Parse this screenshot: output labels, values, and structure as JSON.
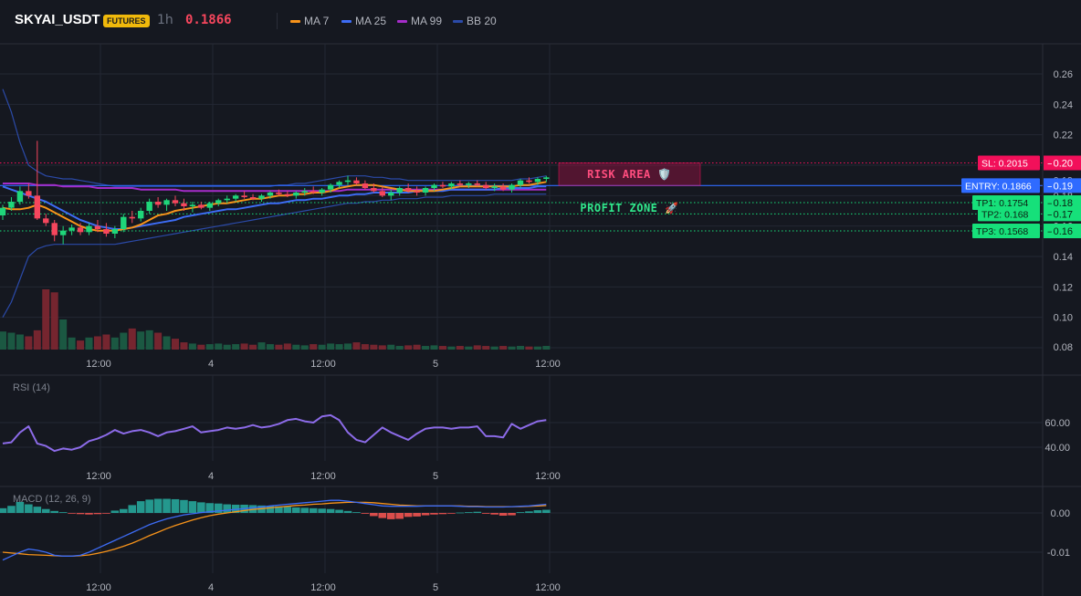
{
  "header": {
    "symbol": "SKYAI_USDT",
    "badge": "FUTURES",
    "timeframe": "1h",
    "price": "0.1866"
  },
  "legend": [
    {
      "label": "MA 7",
      "color": "#f7931a"
    },
    {
      "label": "MA 25",
      "color": "#3d6cf5"
    },
    {
      "label": "MA 99",
      "color": "#a52cc9"
    },
    {
      "label": "BB 20",
      "color": "#2b4aa8"
    }
  ],
  "colors": {
    "up": "#1fd67a",
    "down": "#f6465d",
    "background": "#151820",
    "grid": "#232733",
    "sl": "#f2105a",
    "entry": "#2f6bff",
    "tp": "#16e07a"
  },
  "chart_data": [
    {
      "type": "candlestick",
      "title": "SKYAI_USDT",
      "x_tick_labels": [
        "12:00",
        "4",
        "12:00",
        "5",
        "12:00"
      ],
      "y_tick_labels": [
        "0.26",
        "0.24",
        "0.22",
        "0.20",
        "0.19",
        "0.18",
        "0.17",
        "0.16",
        "0.14",
        "0.12",
        "0.10",
        "0.08"
      ],
      "ylim": [
        0.08,
        0.27
      ],
      "candles": [
        [
          0.167,
          0.174,
          0.164,
          0.172
        ],
        [
          0.172,
          0.179,
          0.17,
          0.176
        ],
        [
          0.176,
          0.186,
          0.174,
          0.183
        ],
        [
          0.183,
          0.188,
          0.178,
          0.18
        ],
        [
          0.18,
          0.216,
          0.164,
          0.165
        ],
        [
          0.165,
          0.168,
          0.16,
          0.162
        ],
        [
          0.162,
          0.164,
          0.15,
          0.154
        ],
        [
          0.154,
          0.16,
          0.148,
          0.157
        ],
        [
          0.157,
          0.161,
          0.154,
          0.159
        ],
        [
          0.159,
          0.162,
          0.154,
          0.156
        ],
        [
          0.156,
          0.162,
          0.154,
          0.16
        ],
        [
          0.16,
          0.164,
          0.156,
          0.158
        ],
        [
          0.158,
          0.162,
          0.153,
          0.155
        ],
        [
          0.155,
          0.16,
          0.152,
          0.158
        ],
        [
          0.158,
          0.168,
          0.156,
          0.166
        ],
        [
          0.166,
          0.17,
          0.162,
          0.165
        ],
        [
          0.165,
          0.172,
          0.163,
          0.17
        ],
        [
          0.17,
          0.178,
          0.168,
          0.176
        ],
        [
          0.176,
          0.179,
          0.172,
          0.174
        ],
        [
          0.174,
          0.178,
          0.17,
          0.177
        ],
        [
          0.177,
          0.18,
          0.173,
          0.175
        ],
        [
          0.175,
          0.178,
          0.17,
          0.173
        ],
        [
          0.173,
          0.176,
          0.169,
          0.174
        ],
        [
          0.174,
          0.176,
          0.171,
          0.172
        ],
        [
          0.172,
          0.176,
          0.17,
          0.175
        ],
        [
          0.175,
          0.178,
          0.173,
          0.177
        ],
        [
          0.177,
          0.18,
          0.175,
          0.178
        ],
        [
          0.178,
          0.181,
          0.176,
          0.18
        ],
        [
          0.18,
          0.183,
          0.178,
          0.179
        ],
        [
          0.179,
          0.181,
          0.177,
          0.178
        ],
        [
          0.178,
          0.181,
          0.176,
          0.18
        ],
        [
          0.18,
          0.183,
          0.178,
          0.182
        ],
        [
          0.182,
          0.184,
          0.18,
          0.181
        ],
        [
          0.181,
          0.183,
          0.179,
          0.18
        ],
        [
          0.18,
          0.183,
          0.178,
          0.182
        ],
        [
          0.182,
          0.185,
          0.18,
          0.183
        ],
        [
          0.183,
          0.186,
          0.181,
          0.182
        ],
        [
          0.182,
          0.185,
          0.18,
          0.184
        ],
        [
          0.184,
          0.188,
          0.182,
          0.187
        ],
        [
          0.187,
          0.19,
          0.185,
          0.189
        ],
        [
          0.189,
          0.193,
          0.187,
          0.19
        ],
        [
          0.19,
          0.192,
          0.187,
          0.188
        ],
        [
          0.188,
          0.19,
          0.184,
          0.185
        ],
        [
          0.185,
          0.188,
          0.182,
          0.183
        ],
        [
          0.183,
          0.186,
          0.179,
          0.18
        ],
        [
          0.18,
          0.184,
          0.177,
          0.182
        ],
        [
          0.182,
          0.186,
          0.18,
          0.185
        ],
        [
          0.185,
          0.188,
          0.182,
          0.183
        ],
        [
          0.183,
          0.186,
          0.18,
          0.182
        ],
        [
          0.182,
          0.186,
          0.18,
          0.185
        ],
        [
          0.185,
          0.188,
          0.183,
          0.187
        ],
        [
          0.187,
          0.189,
          0.185,
          0.186
        ],
        [
          0.186,
          0.189,
          0.184,
          0.188
        ],
        [
          0.188,
          0.19,
          0.186,
          0.187
        ],
        [
          0.187,
          0.189,
          0.185,
          0.188
        ],
        [
          0.188,
          0.19,
          0.186,
          0.187
        ],
        [
          0.187,
          0.189,
          0.184,
          0.185
        ],
        [
          0.185,
          0.188,
          0.183,
          0.186
        ],
        [
          0.186,
          0.188,
          0.183,
          0.184
        ],
        [
          0.184,
          0.188,
          0.182,
          0.187
        ],
        [
          0.187,
          0.191,
          0.185,
          0.19
        ],
        [
          0.19,
          0.192,
          0.188,
          0.189
        ],
        [
          0.189,
          0.192,
          0.187,
          0.191
        ],
        [
          0.191,
          0.193,
          0.189,
          0.192
        ]
      ],
      "ma7": [
        0.172,
        0.171,
        0.171,
        0.172,
        0.174,
        0.172,
        0.169,
        0.166,
        0.163,
        0.16,
        0.158,
        0.157,
        0.157,
        0.157,
        0.158,
        0.159,
        0.161,
        0.164,
        0.167,
        0.168,
        0.17,
        0.171,
        0.172,
        0.173,
        0.174,
        0.175,
        0.175,
        0.176,
        0.177,
        0.178,
        0.178,
        0.179,
        0.18,
        0.18,
        0.181,
        0.181,
        0.182,
        0.182,
        0.183,
        0.185,
        0.186,
        0.187,
        0.187,
        0.187,
        0.186,
        0.185,
        0.184,
        0.183,
        0.183,
        0.183,
        0.183,
        0.184,
        0.185,
        0.186,
        0.186,
        0.186,
        0.186,
        0.186,
        0.186,
        0.186,
        0.187,
        0.187,
        0.188,
        0.189
      ],
      "ma25": [
        0.186,
        0.184,
        0.182,
        0.18,
        0.178,
        0.176,
        0.173,
        0.17,
        0.167,
        0.164,
        0.162,
        0.16,
        0.159,
        0.158,
        0.158,
        0.159,
        0.16,
        0.161,
        0.162,
        0.163,
        0.164,
        0.166,
        0.167,
        0.168,
        0.169,
        0.17,
        0.171,
        0.171,
        0.172,
        0.173,
        0.174,
        0.175,
        0.175,
        0.176,
        0.177,
        0.177,
        0.178,
        0.178,
        0.179,
        0.18,
        0.18,
        0.181,
        0.181,
        0.182,
        0.182,
        0.182,
        0.182,
        0.182,
        0.183,
        0.183,
        0.183,
        0.183,
        0.184,
        0.184,
        0.184,
        0.184,
        0.184,
        0.184,
        0.185,
        0.185,
        0.185,
        0.185,
        0.186,
        0.186
      ],
      "ma99": [
        0.188,
        0.188,
        0.188,
        0.188,
        0.187,
        0.187,
        0.187,
        0.186,
        0.186,
        0.186,
        0.186,
        0.185,
        0.185,
        0.185,
        0.185,
        0.185,
        0.184,
        0.184,
        0.184,
        0.184,
        0.184,
        0.183,
        0.183,
        0.183,
        0.183,
        0.183,
        0.183,
        0.183,
        0.183,
        0.183,
        0.183,
        0.183,
        0.183,
        0.183,
        0.183,
        0.183,
        0.183,
        0.183,
        0.183,
        0.183,
        0.184,
        0.184,
        0.184,
        0.184,
        0.184,
        0.184,
        0.184,
        0.184,
        0.184,
        0.184,
        0.184,
        0.184,
        0.184,
        0.184,
        0.184,
        0.184,
        0.184,
        0.184,
        0.184,
        0.184,
        0.184,
        0.184,
        0.184,
        0.184
      ],
      "bb_upper": [
        0.25,
        0.235,
        0.215,
        0.2,
        0.196,
        0.193,
        0.192,
        0.191,
        0.191,
        0.19,
        0.189,
        0.188,
        0.187,
        0.186,
        0.186,
        0.186,
        0.186,
        0.186,
        0.186,
        0.186,
        0.186,
        0.186,
        0.186,
        0.186,
        0.186,
        0.186,
        0.186,
        0.186,
        0.186,
        0.186,
        0.186,
        0.186,
        0.187,
        0.187,
        0.188,
        0.188,
        0.189,
        0.19,
        0.191,
        0.192,
        0.193,
        0.193,
        0.193,
        0.192,
        0.192,
        0.191,
        0.191,
        0.19,
        0.19,
        0.19,
        0.19,
        0.19,
        0.19,
        0.19,
        0.19,
        0.19,
        0.19,
        0.19,
        0.19,
        0.19,
        0.191,
        0.191,
        0.192,
        0.193
      ],
      "bb_lower": [
        0.1,
        0.11,
        0.125,
        0.14,
        0.145,
        0.147,
        0.148,
        0.148,
        0.148,
        0.148,
        0.148,
        0.148,
        0.148,
        0.148,
        0.149,
        0.15,
        0.151,
        0.152,
        0.153,
        0.154,
        0.155,
        0.156,
        0.157,
        0.158,
        0.159,
        0.16,
        0.161,
        0.162,
        0.163,
        0.164,
        0.165,
        0.166,
        0.167,
        0.168,
        0.169,
        0.17,
        0.171,
        0.172,
        0.173,
        0.174,
        0.175,
        0.175,
        0.176,
        0.176,
        0.177,
        0.177,
        0.178,
        0.178,
        0.178,
        0.179,
        0.179,
        0.179,
        0.18,
        0.18,
        0.18,
        0.18,
        0.18,
        0.181,
        0.181,
        0.181,
        0.181,
        0.181,
        0.181,
        0.181
      ],
      "volume": [
        0.3,
        0.28,
        0.25,
        0.22,
        0.32,
        1.0,
        0.95,
        0.5,
        0.2,
        0.15,
        0.2,
        0.22,
        0.25,
        0.2,
        0.28,
        0.35,
        0.3,
        0.32,
        0.28,
        0.22,
        0.18,
        0.12,
        0.1,
        0.08,
        0.09,
        0.1,
        0.08,
        0.09,
        0.1,
        0.08,
        0.12,
        0.09,
        0.08,
        0.1,
        0.08,
        0.07,
        0.09,
        0.08,
        0.1,
        0.09,
        0.1,
        0.12,
        0.09,
        0.08,
        0.07,
        0.08,
        0.06,
        0.07,
        0.08,
        0.06,
        0.07,
        0.06,
        0.05,
        0.06,
        0.05,
        0.07,
        0.06,
        0.05,
        0.06,
        0.05,
        0.06,
        0.05,
        0.05,
        0.06
      ],
      "levels": [
        {
          "label": "SL: 0.2015",
          "value": 0.2015,
          "color": "#f2105a"
        },
        {
          "label": "ENTRY: 0.1866",
          "value": 0.1866,
          "color": "#2f6bff"
        },
        {
          "label": "TP1: 0.1754",
          "value": 0.1754,
          "color": "#16e07a"
        },
        {
          "label": "TP2: 0.168",
          "value": 0.168,
          "color": "#16e07a"
        },
        {
          "label": "TP3: 0.1568",
          "value": 0.1568,
          "color": "#16e07a"
        }
      ],
      "zones": [
        {
          "label": "RISK AREA 🛡️",
          "from": 0.1866,
          "to": 0.2015,
          "color": "#f2105a"
        },
        {
          "label": "PROFIT ZONE 🚀",
          "from": 0.1568,
          "to": 0.1866,
          "color": "#16e07a"
        }
      ]
    },
    {
      "type": "line",
      "title": "RSI (14)",
      "y_tick_labels": [
        "60.00",
        "40.00"
      ],
      "ylim": [
        27,
        68
      ],
      "values": [
        43,
        44,
        52,
        57,
        43,
        41,
        37,
        39,
        38,
        40,
        45,
        47,
        50,
        54,
        51,
        53,
        54,
        52,
        49,
        52,
        53,
        55,
        57,
        52,
        53,
        54,
        56,
        55,
        56,
        58,
        56,
        57,
        59,
        62,
        63,
        61,
        60,
        65,
        66,
        62,
        52,
        46,
        44,
        50,
        56,
        52,
        49,
        46,
        51,
        55,
        56,
        56,
        55,
        56,
        56,
        57,
        49,
        49,
        48,
        59,
        55,
        58,
        61,
        62
      ],
      "line_color": "#8c6be8"
    },
    {
      "type": "bar",
      "title": "MACD (12, 26, 9)",
      "y_tick_labels": [
        "0.00",
        "-0.01"
      ],
      "ylim": [
        -0.0145,
        0.0065
      ],
      "histogram": [
        0.0012,
        0.0018,
        0.0028,
        0.0022,
        0.0016,
        0.001,
        0.0005,
        0.0002,
        -0.0001,
        -0.0003,
        -0.0004,
        -0.0003,
        -0.0001,
        0.0006,
        0.001,
        0.002,
        0.003,
        0.0034,
        0.0036,
        0.0036,
        0.0035,
        0.0033,
        0.003,
        0.0027,
        0.0025,
        0.0024,
        0.0022,
        0.0021,
        0.0021,
        0.002,
        0.0019,
        0.0018,
        0.0017,
        0.0016,
        0.0014,
        0.0013,
        0.0012,
        0.0011,
        0.001,
        0.0008,
        0.0005,
        0.0002,
        -0.0002,
        -0.0008,
        -0.0013,
        -0.0016,
        -0.0015,
        -0.001,
        -0.0009,
        -0.0006,
        -0.0004,
        -0.0003,
        -0.0001,
        0.0001,
        0.0002,
        0.0003,
        -0.0002,
        -0.0004,
        -0.0007,
        -0.0006,
        0.0002,
        0.0004,
        0.0007,
        0.0008
      ],
      "macd": [
        -0.012,
        -0.011,
        -0.01,
        -0.0092,
        -0.0095,
        -0.01,
        -0.0108,
        -0.011,
        -0.011,
        -0.0108,
        -0.01,
        -0.009,
        -0.008,
        -0.007,
        -0.006,
        -0.005,
        -0.004,
        -0.003,
        -0.0022,
        -0.0015,
        -0.001,
        -0.0005,
        -0.0002,
        0.0001,
        0.0003,
        0.0005,
        0.0007,
        0.0009,
        0.0011,
        0.0013,
        0.0015,
        0.0018,
        0.002,
        0.0022,
        0.0024,
        0.0026,
        0.0028,
        0.003,
        0.0032,
        0.0032,
        0.003,
        0.0027,
        0.0024,
        0.0021,
        0.0018,
        0.0017,
        0.0017,
        0.0017,
        0.0017,
        0.0018,
        0.0018,
        0.0018,
        0.0018,
        0.0017,
        0.0016,
        0.0016,
        0.0015,
        0.0015,
        0.0015,
        0.0016,
        0.0017,
        0.0018,
        0.002,
        0.0022
      ],
      "signal": [
        -0.01,
        -0.0102,
        -0.0104,
        -0.0106,
        -0.0107,
        -0.0108,
        -0.0109,
        -0.011,
        -0.011,
        -0.0109,
        -0.0107,
        -0.0103,
        -0.0098,
        -0.0092,
        -0.0085,
        -0.0077,
        -0.0068,
        -0.0058,
        -0.0049,
        -0.004,
        -0.0032,
        -0.0025,
        -0.0018,
        -0.0012,
        -0.0007,
        -0.0003,
        0.0,
        0.0003,
        0.0006,
        0.0009,
        0.0011,
        0.0013,
        0.0015,
        0.0017,
        0.0019,
        0.002,
        0.0022,
        0.0023,
        0.0025,
        0.0026,
        0.0027,
        0.0027,
        0.0027,
        0.0026,
        0.0024,
        0.0022,
        0.002,
        0.0019,
        0.0018,
        0.0018,
        0.0018,
        0.0018,
        0.0018,
        0.0018,
        0.0017,
        0.0017,
        0.0016,
        0.0016,
        0.0016,
        0.0016,
        0.0016,
        0.0017,
        0.0018,
        0.0019
      ],
      "macd_color": "#3d6cf5",
      "signal_color": "#f7931a"
    }
  ]
}
